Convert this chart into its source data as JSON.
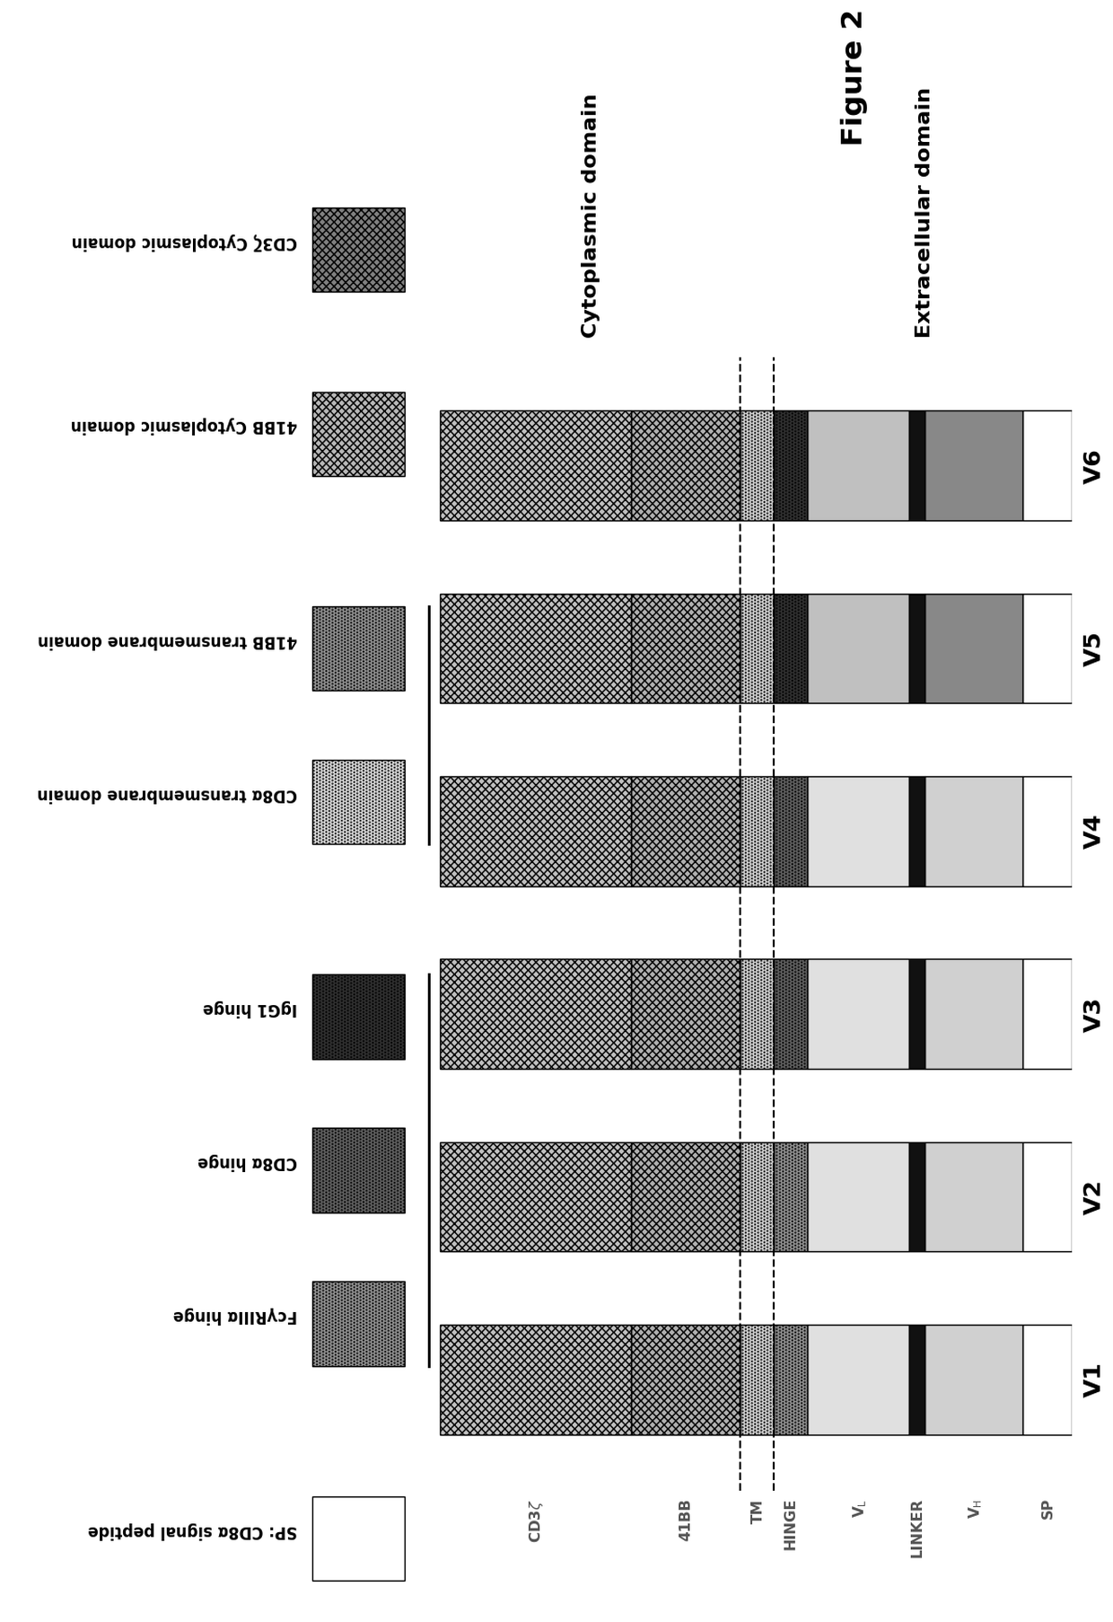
{
  "versions": [
    "V1",
    "V2",
    "V3",
    "V4",
    "V5",
    "V6"
  ],
  "segments_order": [
    "SP",
    "VH",
    "LINKER",
    "VL",
    "HINGE",
    "TM",
    "41BB",
    "CD3z"
  ],
  "heights": {
    "SP": 0.07,
    "VH": 0.14,
    "LINKER": 0.022,
    "VL": 0.145,
    "HINGE": 0.048,
    "TM": 0.048,
    "41BB": 0.155,
    "CD3z": 0.272
  },
  "seg_colors": {
    "V1": {
      "SP": "white",
      "VH": "#d0d0d0",
      "LINKER": "#111111",
      "VL": "#e0e0e0",
      "HINGE": "#909090",
      "TM": "#d0d0d0",
      "41BB": "#b0b0b0",
      "CD3z": "#c0c0c0"
    },
    "V2": {
      "SP": "white",
      "VH": "#d0d0d0",
      "LINKER": "#111111",
      "VL": "#e0e0e0",
      "HINGE": "#909090",
      "TM": "#d0d0d0",
      "41BB": "#b0b0b0",
      "CD3z": "#c0c0c0"
    },
    "V3": {
      "SP": "white",
      "VH": "#d0d0d0",
      "LINKER": "#111111",
      "VL": "#e0e0e0",
      "HINGE": "#606060",
      "TM": "#d0d0d0",
      "41BB": "#b0b0b0",
      "CD3z": "#c0c0c0"
    },
    "V4": {
      "SP": "white",
      "VH": "#d0d0d0",
      "LINKER": "#111111",
      "VL": "#e0e0e0",
      "HINGE": "#606060",
      "TM": "#d0d0d0",
      "41BB": "#b0b0b0",
      "CD3z": "#c0c0c0"
    },
    "V5": {
      "SP": "white",
      "VH": "#888888",
      "LINKER": "#111111",
      "VL": "#c0c0c0",
      "HINGE": "#303030",
      "TM": "#d0d0d0",
      "41BB": "#b0b0b0",
      "CD3z": "#c0c0c0"
    },
    "V6": {
      "SP": "white",
      "VH": "#888888",
      "LINKER": "#111111",
      "VL": "#c0c0c0",
      "HINGE": "#303030",
      "TM": "#d0d0d0",
      "41BB": "#b0b0b0",
      "CD3z": "#c0c0c0"
    }
  },
  "seg_hatches": {
    "SP": "",
    "VH": "",
    "LINKER": "",
    "VL": "",
    "HINGE": ".....",
    "TM": ".....",
    "41BB": "xxxx",
    "CD3z": "xxxx"
  },
  "seg_labels": {
    "SP": "SP",
    "VH": "V_H",
    "LINKER": "LINKER",
    "VL": "V_L",
    "HINGE": "HINGE",
    "TM": "TM",
    "41BB": "41BB",
    "CD3z": "CD3z"
  },
  "hinge_types": {
    "V1": "FcgRIIIa",
    "V2": "FcgRIIIa",
    "V3": "CD8a",
    "V4": "CD8a",
    "V5": "IgG1",
    "V6": "IgG1"
  },
  "tm_types": {
    "V1": "CD8a",
    "V2": "CD8a",
    "V3": "CD8a",
    "V4": "CD8a",
    "V5": "41BB",
    "V6": "41BB"
  },
  "legend_items": [
    {
      "label": "SP: CD8α signal peptide",
      "color": "white",
      "hatch": "",
      "group": 0
    },
    {
      "label": "FcγRIIIα hinge",
      "color": "#909090",
      "hatch": ".....",
      "group": 1
    },
    {
      "label": "CD8α hinge",
      "color": "#606060",
      "hatch": ".....",
      "group": 1
    },
    {
      "label": "IgG1 hinge",
      "color": "#303030",
      "hatch": ".....",
      "group": 1
    },
    {
      "label": "CD8α transmembrane domain",
      "color": "#d8d8d8",
      "hatch": ".....",
      "group": 2
    },
    {
      "label": "41BB transmembrane domain",
      "color": "#909090",
      "hatch": ".....",
      "group": 2
    },
    {
      "label": "41BB Cytoplasmic domain",
      "color": "#b8b8b8",
      "hatch": "xxxx",
      "group": 3
    },
    {
      "label": "CD3ζ Cytoplasmic domain",
      "color": "#808080",
      "hatch": "xxxx",
      "group": 3
    }
  ],
  "extracellular_label": "Extracellular domain",
  "cytoplasmic_label": "Cytoplasmic domain",
  "figure2_label": "Figure 2",
  "bar_width": 0.6,
  "bar_spacing": 1.0
}
